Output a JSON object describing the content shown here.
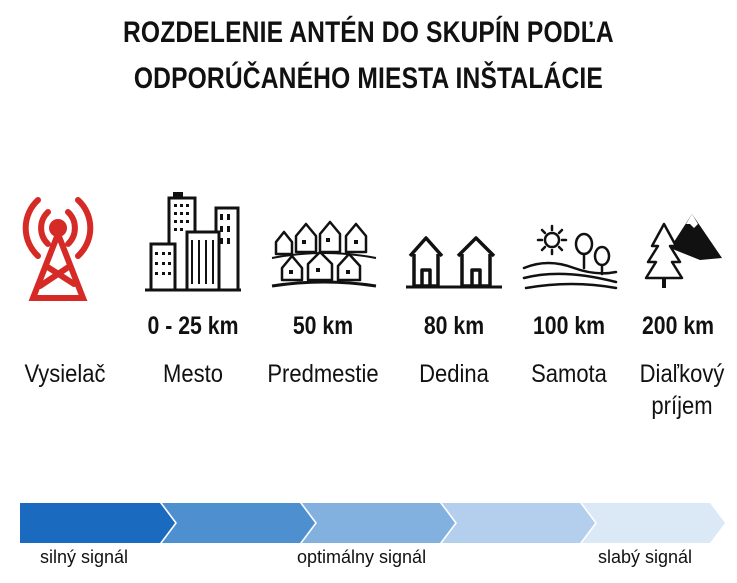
{
  "title": {
    "line1": "ROZDELENIE ANTÉN DO SKUPÍN PODĽA",
    "line2": "ODPORÚČANÉHO MIESTA INŠTALÁCIE"
  },
  "groups": [
    {
      "icon": "radio-tower-icon",
      "distance": "",
      "label": "Vysielač"
    },
    {
      "icon": "city-skyscrapers-icon",
      "distance": "0 - 25 km",
      "label": "Mesto"
    },
    {
      "icon": "suburb-houses-icon",
      "distance": "50 km",
      "label": "Predmestie"
    },
    {
      "icon": "village-houses-icon",
      "distance": "80 km",
      "label": "Dedina"
    },
    {
      "icon": "countryside-sun-trees-icon",
      "distance": "100 km",
      "label": "Samota"
    },
    {
      "icon": "mountain-tree-icon",
      "distance": "200 km",
      "label": "Diaľkový príjem"
    }
  ],
  "signal": {
    "strong": "silný signál",
    "optimal": "optimálny signál",
    "weak": "slabý signál",
    "gradient_colors": [
      "#1a6bbf",
      "#4e8fd0",
      "#82b1df",
      "#b3cfed",
      "#dbe8f6"
    ]
  },
  "colors": {
    "tower": "#d52a25",
    "text": "#111111"
  }
}
